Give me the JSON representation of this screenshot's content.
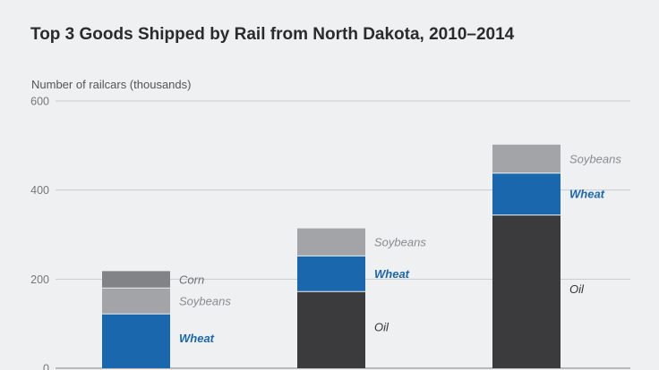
{
  "chart_data": {
    "type": "bar",
    "stacked": true,
    "title": "Top 3 Goods Shipped by Rail from North Dakota, 2010–2014",
    "ylabel": "Number of railcars (thousands)",
    "ylim": [
      0,
      600
    ],
    "yticks": [
      0,
      200,
      400,
      600
    ],
    "grid": true,
    "categories": [
      "",
      "",
      ""
    ],
    "bars": [
      {
        "segments": [
          {
            "name": "Wheat",
            "value": 122
          },
          {
            "name": "Soybeans",
            "value": 58
          },
          {
            "name": "Corn",
            "value": 38
          }
        ]
      },
      {
        "segments": [
          {
            "name": "Oil",
            "value": 172
          },
          {
            "name": "Wheat",
            "value": 80
          },
          {
            "name": "Soybeans",
            "value": 62
          }
        ]
      },
      {
        "segments": [
          {
            "name": "Oil",
            "value": 344
          },
          {
            "name": "Wheat",
            "value": 94
          },
          {
            "name": "Soybeans",
            "value": 64
          }
        ]
      }
    ],
    "colors": {
      "Oil": "#3b3b3d",
      "Wheat": "#1a67ae",
      "Soybeans": "#a3a4a8",
      "Corn": "#828387"
    },
    "label_colors": {
      "Oil": "#333333",
      "Wheat": "#1a67ae",
      "Soybeans": "#8a8a8e",
      "Corn": "#6e6e72"
    }
  }
}
